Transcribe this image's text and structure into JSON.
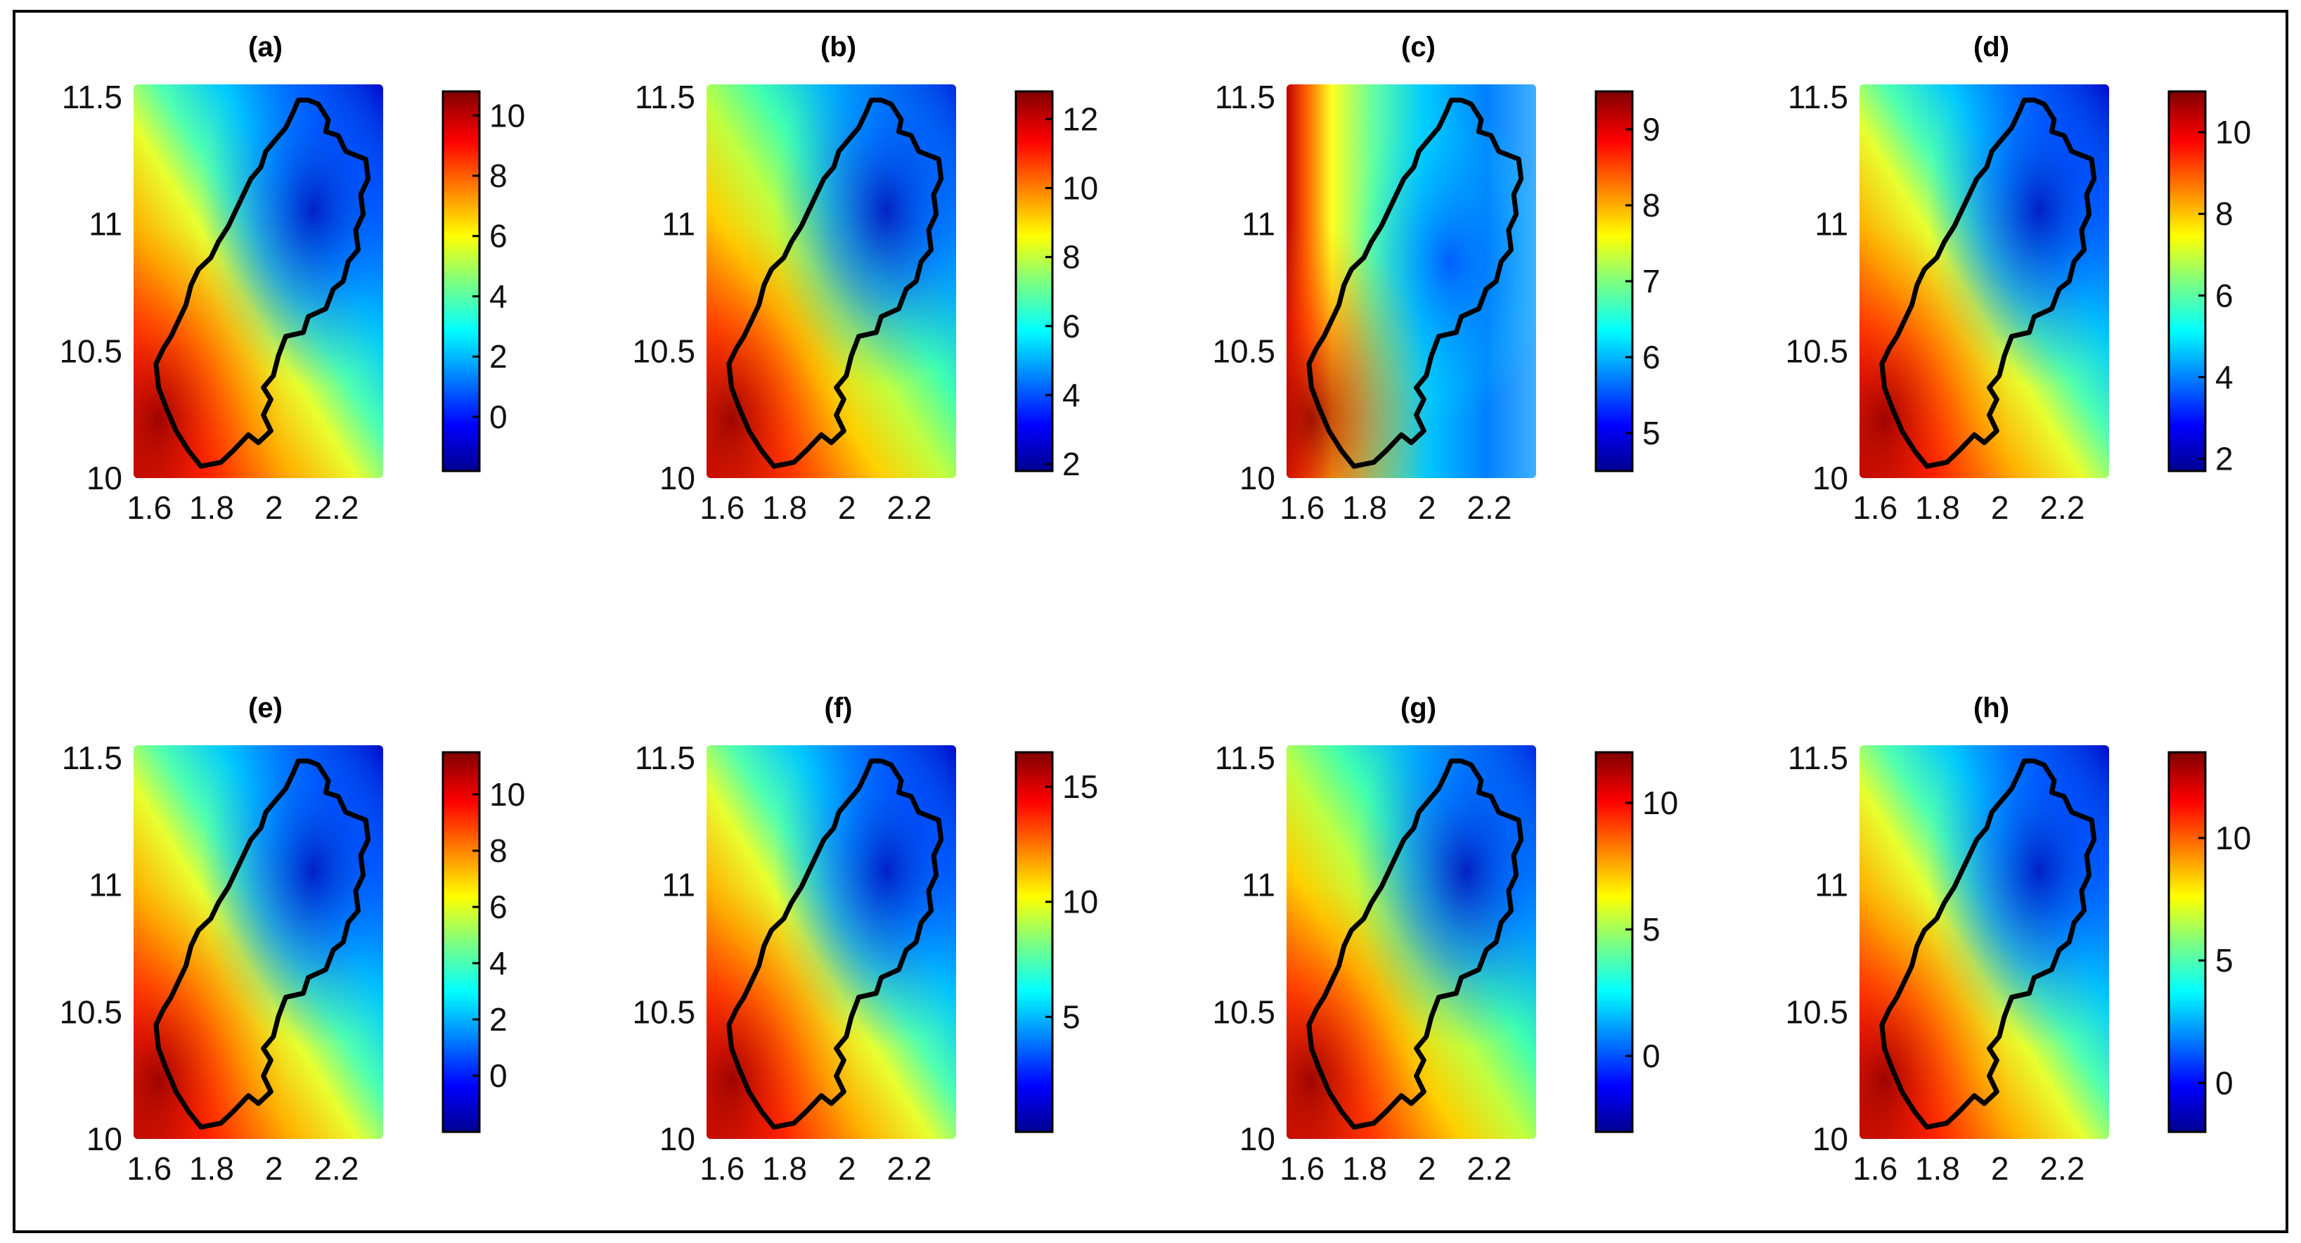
{
  "figure": {
    "panels_per_row": 4
  },
  "chart_data": [
    {
      "type": "heatmap",
      "title": "(a)",
      "xticks": [
        "1.6",
        "1.8",
        "2",
        "2.2"
      ],
      "xlim": [
        1.55,
        2.35
      ],
      "yticks": [
        "10",
        "10.5",
        "11",
        "11.5"
      ],
      "ylim": [
        10,
        11.55
      ],
      "colormap": "jet",
      "colorbar": {
        "ticks": [
          "0",
          "2",
          "4",
          "6",
          "8",
          "10"
        ],
        "range": [
          -1.8,
          10.8
        ]
      },
      "grid": false,
      "surface": {
        "hot_corner": "bottom-left",
        "cold_corner": "top-right",
        "min_value": -1.8,
        "max_value": 10.8
      }
    },
    {
      "type": "heatmap",
      "title": "(b)",
      "xticks": [
        "1.6",
        "1.8",
        "2",
        "2.2"
      ],
      "xlim": [
        1.55,
        2.35
      ],
      "yticks": [
        "10",
        "10.5",
        "11",
        "11.5"
      ],
      "ylim": [
        10,
        11.55
      ],
      "colormap": "jet",
      "colorbar": {
        "ticks": [
          "2",
          "4",
          "6",
          "8",
          "10",
          "12"
        ],
        "range": [
          1.8,
          12.8
        ]
      },
      "grid": false,
      "surface": {
        "hot_corner": "bottom-left",
        "cold_corner": "top-right",
        "min_value": 1.8,
        "max_value": 12.8
      }
    },
    {
      "type": "heatmap",
      "title": "(c)",
      "xticks": [
        "1.6",
        "1.8",
        "2",
        "2.2"
      ],
      "xlim": [
        1.55,
        2.35
      ],
      "yticks": [
        "10",
        "10.5",
        "11",
        "11.5"
      ],
      "ylim": [
        10,
        11.55
      ],
      "colormap": "jet",
      "colorbar": {
        "ticks": [
          "5",
          "6",
          "7",
          "8",
          "9"
        ],
        "range": [
          4.5,
          9.5
        ]
      },
      "grid": false,
      "surface": {
        "hot_corner": "left",
        "cold_corner": "top-right",
        "min_value": 4.5,
        "max_value": 9.5
      }
    },
    {
      "type": "heatmap",
      "title": "(d)",
      "xticks": [
        "1.6",
        "1.8",
        "2",
        "2.2"
      ],
      "xlim": [
        1.55,
        2.35
      ],
      "yticks": [
        "10",
        "10.5",
        "11",
        "11.5"
      ],
      "ylim": [
        10,
        11.55
      ],
      "colormap": "jet",
      "colorbar": {
        "ticks": [
          "2",
          "4",
          "6",
          "8",
          "10"
        ],
        "range": [
          1.7,
          11
        ]
      },
      "grid": false,
      "surface": {
        "hot_corner": "bottom-left",
        "cold_corner": "top-right",
        "min_value": 1.7,
        "max_value": 11
      }
    },
    {
      "type": "heatmap",
      "title": "(e)",
      "xticks": [
        "1.6",
        "1.8",
        "2",
        "2.2"
      ],
      "xlim": [
        1.55,
        2.35
      ],
      "yticks": [
        "10",
        "10.5",
        "11",
        "11.5"
      ],
      "ylim": [
        10,
        11.55
      ],
      "colormap": "jet",
      "colorbar": {
        "ticks": [
          "0",
          "2",
          "4",
          "6",
          "8",
          "10"
        ],
        "range": [
          -2,
          11.5
        ]
      },
      "grid": false,
      "surface": {
        "hot_corner": "bottom-left",
        "cold_corner": "top-right",
        "min_value": -2,
        "max_value": 11.5
      }
    },
    {
      "type": "heatmap",
      "title": "(f)",
      "xticks": [
        "1.6",
        "1.8",
        "2",
        "2.2"
      ],
      "xlim": [
        1.55,
        2.35
      ],
      "yticks": [
        "10",
        "10.5",
        "11",
        "11.5"
      ],
      "ylim": [
        10,
        11.55
      ],
      "colormap": "jet",
      "colorbar": {
        "ticks": [
          "5",
          "10",
          "15"
        ],
        "range": [
          0,
          16.5
        ]
      },
      "grid": false,
      "surface": {
        "hot_corner": "bottom-left",
        "cold_corner": "top-right",
        "min_value": 0,
        "max_value": 16.5
      }
    },
    {
      "type": "heatmap",
      "title": "(g)",
      "xticks": [
        "1.6",
        "1.8",
        "2",
        "2.2"
      ],
      "xlim": [
        1.55,
        2.35
      ],
      "yticks": [
        "10",
        "10.5",
        "11",
        "11.5"
      ],
      "ylim": [
        10,
        11.55
      ],
      "colormap": "jet",
      "colorbar": {
        "ticks": [
          "0",
          "5",
          "10"
        ],
        "range": [
          -3,
          12
        ]
      },
      "grid": false,
      "surface": {
        "hot_corner": "bottom-left",
        "cold_corner": "top-right",
        "min_value": -3,
        "max_value": 12
      }
    },
    {
      "type": "heatmap",
      "title": "(h)",
      "xticks": [
        "1.6",
        "1.8",
        "2",
        "2.2"
      ],
      "xlim": [
        1.55,
        2.35
      ],
      "yticks": [
        "10",
        "10.5",
        "11",
        "11.5"
      ],
      "ylim": [
        10,
        11.55
      ],
      "colormap": "jet",
      "colorbar": {
        "ticks": [
          "0",
          "5",
          "10"
        ],
        "range": [
          -2,
          13.5
        ]
      },
      "grid": false,
      "surface": {
        "hot_corner": "bottom-left",
        "cold_corner": "top-right",
        "min_value": -2,
        "max_value": 13.5
      }
    }
  ]
}
